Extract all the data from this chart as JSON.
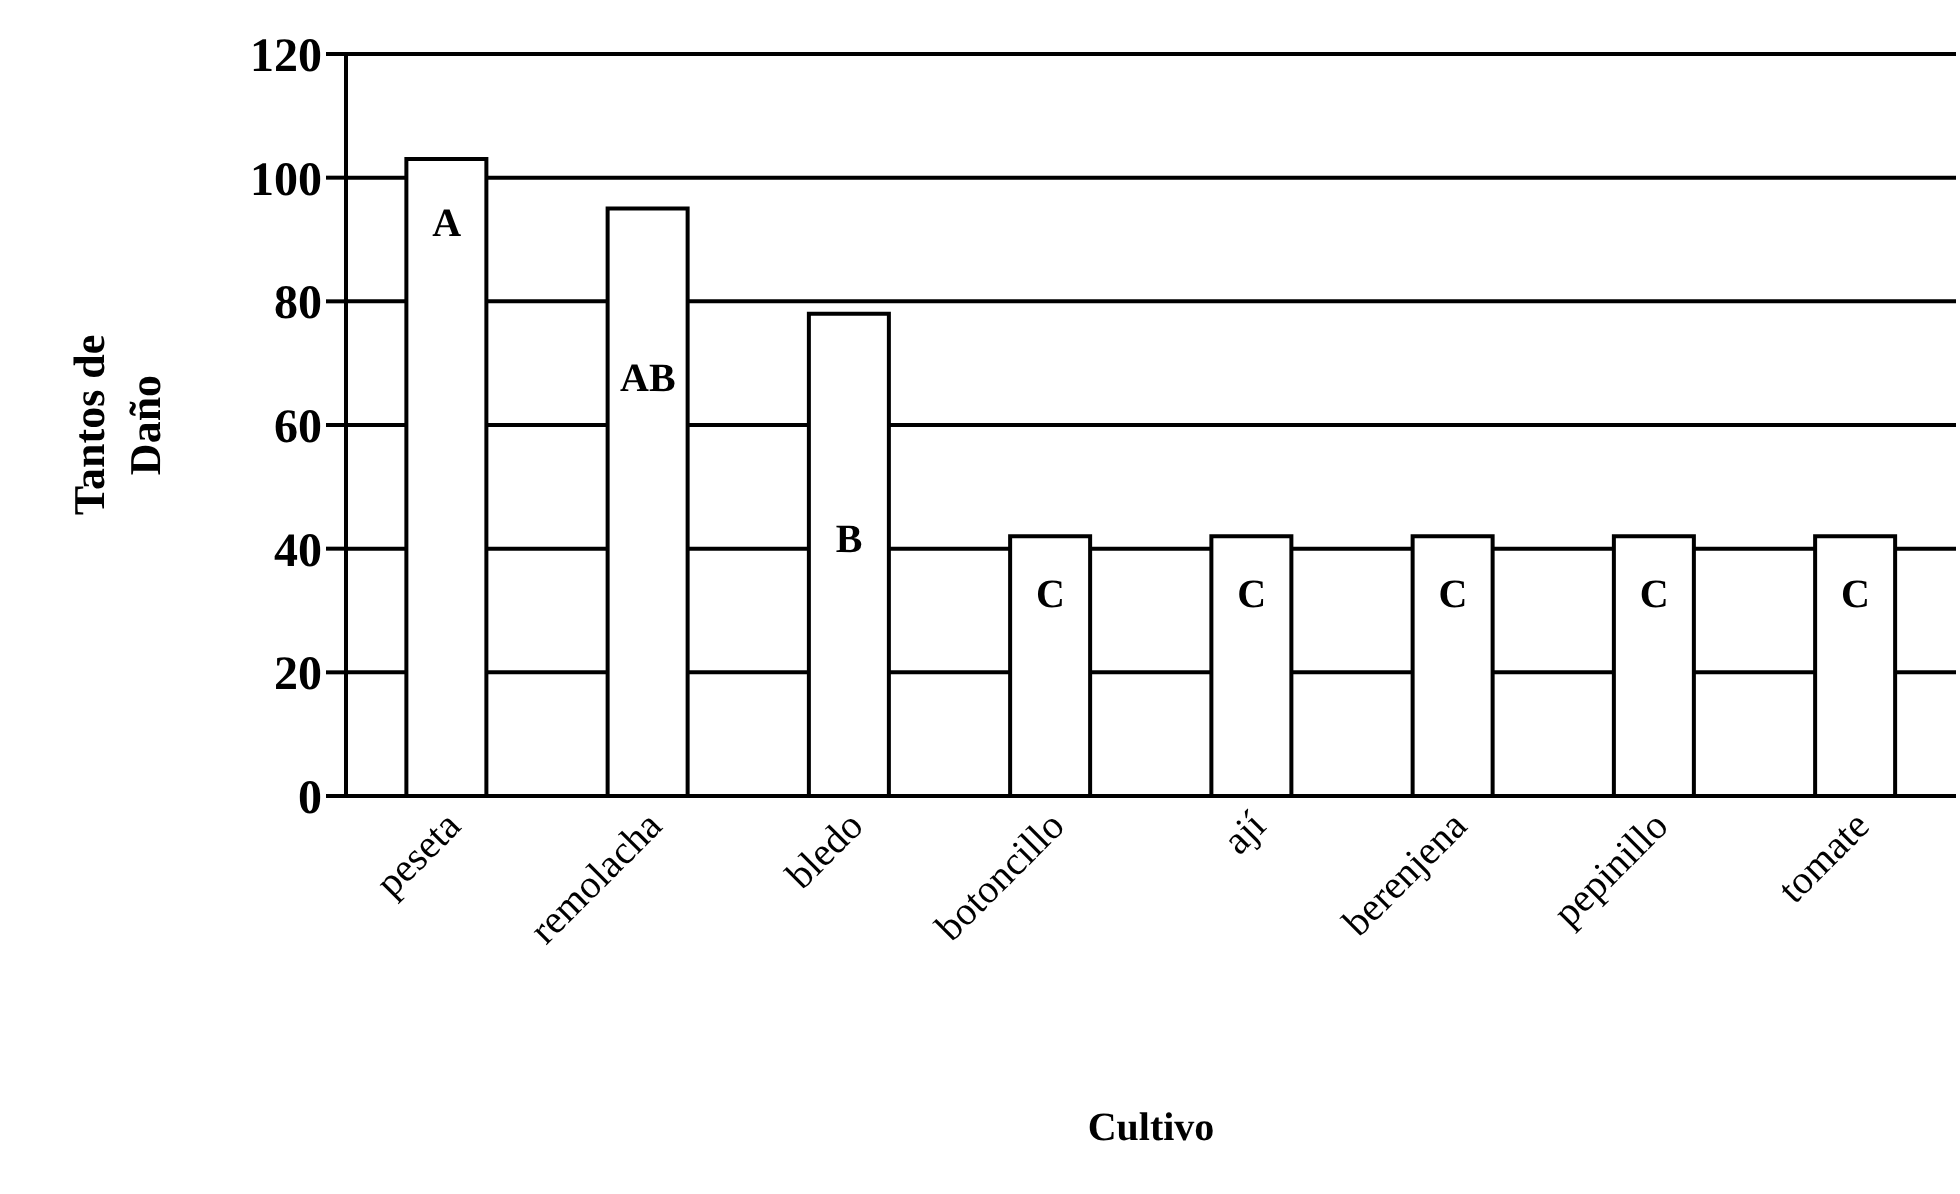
{
  "chart_data": {
    "type": "bar",
    "xlabel": "Cultivo",
    "ylabel": "Tantos de Daño",
    "categories": [
      "peseta",
      "remolacha",
      "bledo",
      "botoncillo",
      "ají",
      "berenjena",
      "pepinillo",
      "tomate"
    ],
    "values": [
      103,
      95,
      78,
      42,
      42,
      42,
      42,
      42
    ],
    "color": "#ffffff",
    "ylim": [
      0,
      120
    ],
    "yticks": [
      0,
      20,
      40,
      60,
      80,
      100,
      120
    ],
    "grid": "y",
    "legend": false,
    "annotations": [
      {
        "text": "A",
        "x": "peseta",
        "y": 92
      },
      {
        "text": "AB",
        "x": "remolacha",
        "y": 67
      },
      {
        "text": "B",
        "x": "bledo",
        "y": 41
      },
      {
        "text": "C",
        "x": "botoncillo",
        "y": 32
      },
      {
        "text": "C",
        "x": "ají",
        "y": 32
      },
      {
        "text": "C",
        "x": "berenjena",
        "y": 32
      },
      {
        "text": "C",
        "x": "pepinillo",
        "y": 32
      },
      {
        "text": "C",
        "x": "tomate",
        "y": 32
      }
    ]
  }
}
